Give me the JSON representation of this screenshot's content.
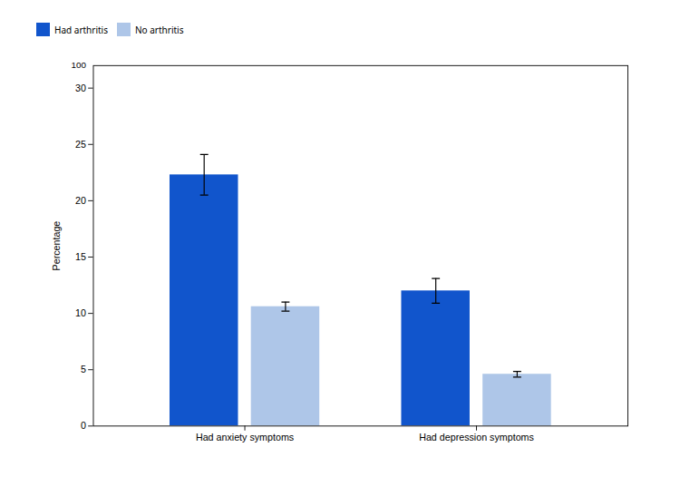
{
  "chart_data": {
    "type": "bar",
    "categories": [
      "Had anxiety symptoms",
      "Had depression symptoms"
    ],
    "series": [
      {
        "name": "Had arthritis",
        "color": "#1155cc",
        "values": [
          22.3,
          12.0
        ],
        "errors": [
          1.8,
          1.1
        ]
      },
      {
        "name": "No arthritis",
        "color": "#aec6e8",
        "values": [
          10.6,
          4.6
        ],
        "errors": [
          0.4,
          0.25
        ]
      }
    ],
    "ylabel": "Percentage",
    "ylim": [
      0,
      32
    ],
    "yticks": [
      0,
      5,
      10,
      15,
      20,
      25,
      30
    ],
    "legend": "upper left",
    "grid": false,
    "annotations": [
      {
        "text": "100"
      }
    ]
  }
}
